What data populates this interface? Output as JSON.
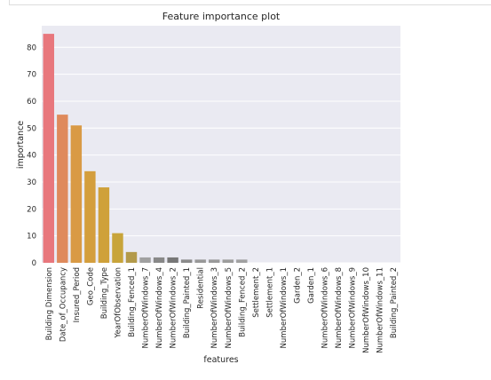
{
  "chart_data": {
    "type": "bar",
    "title": "Feature importance plot",
    "xlabel": "features",
    "ylabel": "importance",
    "ylim": [
      0,
      88
    ],
    "yticks": [
      0,
      10,
      20,
      30,
      40,
      50,
      60,
      70,
      80
    ],
    "grid": true,
    "categories": [
      "Building Dimension",
      "Date_of_Occupancy",
      "Insured_Period",
      "Geo_Code",
      "Building_Type",
      "YearOfObservation",
      "Building_Fenced_1",
      "NumberOfWindows_7",
      "NumberOfWindows_4",
      "NumberOfWindows_2",
      "Building_Painted_1",
      "Residential",
      "NumberOfWindows_3",
      "NumberOfWindows_5",
      "Building_Fenced_2",
      "Settlement_2",
      "Settlement_1",
      "NumberOfWindows_1",
      "Garden_2",
      "Garden_1",
      "NumberOfWindows_6",
      "NumberOfWindows_8",
      "NumberOfWindows_9",
      "NumberOfWindows_10",
      "NumberOfWindows_11",
      "Building_Painted_2"
    ],
    "values": [
      85,
      55,
      51,
      34,
      28,
      11,
      4,
      2,
      2,
      2,
      1.2,
      1.2,
      1.2,
      1.2,
      1.2,
      0,
      0,
      0,
      0,
      0,
      0,
      0,
      0,
      0,
      0,
      0
    ],
    "colors": [
      "#e8777d",
      "#df8a5c",
      "#d99a45",
      "#d49e3d",
      "#cfa13a",
      "#c8a43a",
      "#b39a4a",
      "#a0a0a0",
      "#888888",
      "#777777",
      "#8a8a8a",
      "#989898",
      "#9a9a9a",
      "#9c9c9c",
      "#a0a0a0",
      "#a5a5a5",
      "#a8a8a8",
      "#aaaaaa",
      "#acacac",
      "#aeaeae",
      "#b0b0b0",
      "#b2b2b2",
      "#b4b4b4",
      "#b6b6b6",
      "#b8b8b8",
      "#bababa"
    ],
    "background_color": "#eaeaf2",
    "grid_color": "#ffffff"
  }
}
